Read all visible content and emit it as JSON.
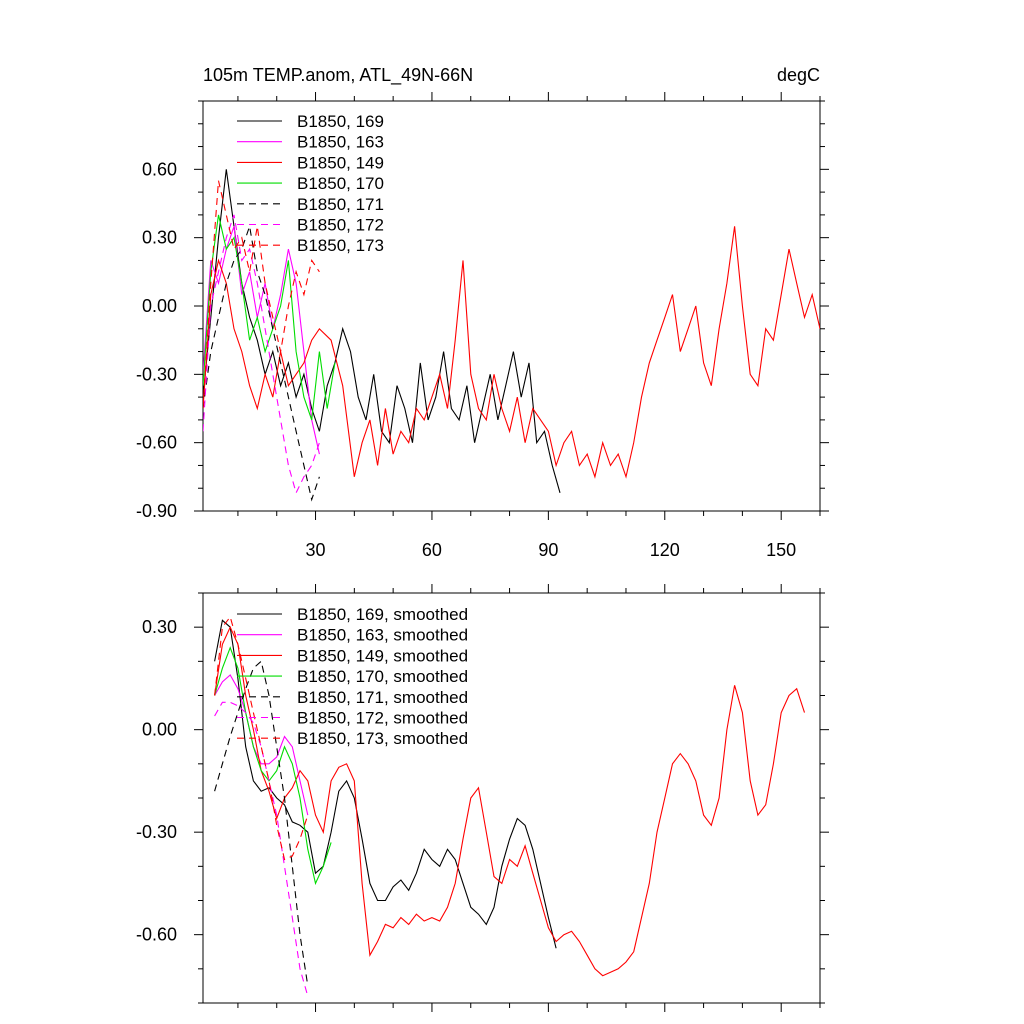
{
  "figure": {
    "title_left": "105m TEMP.anom, ATL_49N-66N",
    "title_right": "degC"
  },
  "chart_data": [
    {
      "type": "line",
      "panel": "top",
      "title": "105m TEMP.anom, ATL_49N-66N",
      "units": "degC",
      "xlim": [
        1,
        160
      ],
      "ylim": [
        -0.9,
        0.9
      ],
      "xticks": [
        30,
        60,
        90,
        120,
        150
      ],
      "xtick_labels": [
        "30",
        "60",
        "90",
        "120",
        "150"
      ],
      "yticks": [
        -0.9,
        -0.6,
        -0.3,
        0.0,
        0.3,
        0.6
      ],
      "ytick_labels": [
        "-0.90",
        "-0.60",
        "-0.30",
        "0.00",
        "0.30",
        "0.60"
      ],
      "legend_position": "top-left",
      "series": [
        {
          "name": "B1850, 169",
          "color": "#000000",
          "dash": "solid",
          "x": [
            1,
            3,
            5,
            7,
            9,
            11,
            13,
            15,
            17,
            19,
            21,
            23,
            25,
            27,
            29,
            31,
            33,
            35,
            37,
            39,
            41,
            43,
            45,
            47,
            49,
            51,
            53,
            55,
            57,
            59,
            61,
            63,
            65,
            67,
            69,
            71,
            73,
            75,
            77,
            79,
            81,
            83,
            85,
            87,
            89,
            91,
            93
          ],
          "values": [
            -0.4,
            -0.05,
            0.3,
            0.6,
            0.35,
            0.1,
            -0.05,
            -0.15,
            -0.3,
            -0.2,
            -0.35,
            -0.25,
            -0.4,
            -0.3,
            -0.45,
            -0.55,
            -0.35,
            -0.25,
            -0.1,
            -0.2,
            -0.4,
            -0.5,
            -0.3,
            -0.55,
            -0.6,
            -0.35,
            -0.45,
            -0.6,
            -0.25,
            -0.5,
            -0.4,
            -0.2,
            -0.45,
            -0.5,
            -0.35,
            -0.6,
            -0.45,
            -0.3,
            -0.5,
            -0.35,
            -0.2,
            -0.4,
            -0.25,
            -0.6,
            -0.55,
            -0.7,
            -0.82
          ]
        },
        {
          "name": "B1850, 163",
          "color": "#ff00ff",
          "dash": "solid",
          "x": [
            1,
            3,
            5,
            7,
            9,
            11,
            13,
            15,
            17,
            19,
            21,
            23,
            25,
            27,
            29,
            31
          ],
          "values": [
            -0.3,
            0.2,
            0.1,
            0.25,
            0.35,
            0.05,
            0.15,
            -0.05,
            0.1,
            -0.1,
            0.05,
            0.25,
            0.1,
            -0.2,
            -0.5,
            -0.65
          ]
        },
        {
          "name": "B1850, 149",
          "color": "#ff0000",
          "dash": "solid",
          "x": [
            1,
            3,
            5,
            7,
            9,
            11,
            13,
            15,
            17,
            19,
            21,
            23,
            25,
            27,
            29,
            31,
            34,
            37,
            40,
            42,
            44,
            46,
            48,
            50,
            52,
            54,
            56,
            58,
            60,
            62,
            64,
            66,
            68,
            70,
            72,
            74,
            76,
            78,
            80,
            82,
            84,
            86,
            88,
            90,
            92,
            94,
            96,
            98,
            100,
            102,
            104,
            106,
            108,
            110,
            112,
            114,
            116,
            118,
            120,
            122,
            124,
            126,
            128,
            130,
            132,
            134,
            136,
            138,
            140,
            142,
            144,
            146,
            148,
            150,
            152,
            154,
            156,
            158,
            160
          ],
          "values": [
            -0.45,
            0.05,
            0.2,
            0.1,
            -0.1,
            -0.2,
            -0.35,
            -0.45,
            -0.3,
            -0.4,
            -0.2,
            -0.35,
            -0.3,
            -0.25,
            -0.15,
            -0.1,
            -0.15,
            -0.35,
            -0.75,
            -0.6,
            -0.5,
            -0.7,
            -0.45,
            -0.65,
            -0.55,
            -0.6,
            -0.45,
            -0.5,
            -0.4,
            -0.3,
            -0.45,
            -0.15,
            0.2,
            -0.3,
            -0.45,
            -0.5,
            -0.3,
            -0.45,
            -0.55,
            -0.4,
            -0.6,
            -0.45,
            -0.5,
            -0.55,
            -0.7,
            -0.6,
            -0.55,
            -0.7,
            -0.65,
            -0.75,
            -0.6,
            -0.7,
            -0.65,
            -0.75,
            -0.6,
            -0.4,
            -0.25,
            -0.15,
            -0.05,
            0.05,
            -0.2,
            -0.1,
            0.0,
            -0.25,
            -0.35,
            -0.1,
            0.1,
            0.35,
            0.0,
            -0.3,
            -0.35,
            -0.1,
            -0.15,
            0.05,
            0.25,
            0.1,
            -0.05,
            0.05,
            -0.1
          ]
        },
        {
          "name": "B1850, 170",
          "color": "#00dd00",
          "dash": "solid",
          "x": [
            1,
            3,
            5,
            7,
            9,
            11,
            13,
            15,
            17,
            19,
            21,
            23,
            25,
            27,
            29,
            31,
            33,
            35
          ],
          "values": [
            -0.35,
            0.15,
            0.4,
            0.25,
            0.3,
            0.1,
            -0.15,
            -0.05,
            -0.2,
            -0.1,
            0.0,
            0.2,
            -0.2,
            -0.4,
            -0.5,
            -0.2,
            -0.45,
            -0.25
          ]
        },
        {
          "name": "B1850, 171",
          "color": "#000000",
          "dash": "dashed",
          "x": [
            1,
            3,
            5,
            7,
            9,
            11,
            13,
            15,
            17,
            19,
            21,
            23,
            25,
            27,
            29,
            31
          ],
          "values": [
            -0.45,
            -0.2,
            -0.05,
            0.1,
            0.2,
            0.25,
            0.35,
            0.15,
            0.05,
            -0.1,
            -0.25,
            -0.4,
            -0.55,
            -0.7,
            -0.85,
            -0.75
          ]
        },
        {
          "name": "B1850, 172",
          "color": "#ff00ff",
          "dash": "dashed",
          "x": [
            1,
            3,
            5,
            7,
            9,
            11,
            13,
            15,
            17,
            19,
            21,
            23,
            25,
            27,
            29,
            31
          ],
          "values": [
            -0.55,
            0.0,
            0.15,
            0.3,
            0.4,
            0.2,
            0.25,
            0.1,
            -0.1,
            -0.3,
            -0.5,
            -0.7,
            -0.82,
            -0.75,
            -0.7,
            -0.6
          ]
        },
        {
          "name": "B1850, 173",
          "color": "#ff0000",
          "dash": "dashed",
          "x": [
            1,
            3,
            5,
            7,
            9,
            11,
            13,
            15,
            17,
            19,
            21,
            23,
            25,
            27,
            29,
            31
          ],
          "values": [
            -0.45,
            0.1,
            0.55,
            0.4,
            0.25,
            0.3,
            0.15,
            0.35,
            0.1,
            -0.05,
            -0.2,
            0.0,
            0.15,
            0.05,
            0.2,
            0.15
          ]
        }
      ]
    },
    {
      "type": "line",
      "panel": "bottom",
      "xlim": [
        1,
        160
      ],
      "ylim": [
        -0.8,
        0.4
      ],
      "xticks": [
        30,
        60,
        90,
        120,
        150
      ],
      "yticks": [
        -0.6,
        -0.3,
        0.0,
        0.3
      ],
      "ytick_labels": [
        "-0.60",
        "-0.30",
        "0.00",
        "0.30"
      ],
      "legend_position": "top-left",
      "series": [
        {
          "name": "B1850, 169, smoothed",
          "color": "#000000",
          "dash": "solid",
          "x": [
            4,
            6,
            8,
            10,
            12,
            14,
            16,
            18,
            20,
            22,
            24,
            26,
            28,
            30,
            32,
            34,
            36,
            38,
            40,
            42,
            44,
            46,
            48,
            50,
            52,
            54,
            56,
            58,
            60,
            62,
            64,
            66,
            68,
            70,
            72,
            74,
            76,
            78,
            80,
            82,
            84,
            86,
            88,
            90,
            92
          ],
          "values": [
            0.2,
            0.32,
            0.3,
            0.15,
            -0.05,
            -0.15,
            -0.18,
            -0.17,
            -0.2,
            -0.22,
            -0.27,
            -0.28,
            -0.3,
            -0.42,
            -0.4,
            -0.3,
            -0.18,
            -0.15,
            -0.2,
            -0.32,
            -0.45,
            -0.5,
            -0.5,
            -0.46,
            -0.44,
            -0.47,
            -0.42,
            -0.35,
            -0.38,
            -0.4,
            -0.35,
            -0.38,
            -0.45,
            -0.52,
            -0.54,
            -0.57,
            -0.52,
            -0.4,
            -0.32,
            -0.26,
            -0.28,
            -0.35,
            -0.45,
            -0.55,
            -0.64
          ]
        },
        {
          "name": "B1850, 163, smoothed",
          "color": "#ff00ff",
          "dash": "solid",
          "x": [
            4,
            6,
            8,
            10,
            12,
            14,
            16,
            18,
            20,
            22,
            24,
            26,
            28
          ],
          "values": [
            0.1,
            0.14,
            0.16,
            0.12,
            0.05,
            -0.05,
            -0.1,
            -0.1,
            -0.08,
            -0.02,
            -0.05,
            -0.15,
            -0.25
          ]
        },
        {
          "name": "B1850, 149, smoothed",
          "color": "#ff0000",
          "dash": "solid",
          "x": [
            4,
            6,
            8,
            10,
            12,
            14,
            16,
            18,
            20,
            22,
            24,
            26,
            28,
            30,
            32,
            34,
            36,
            38,
            40,
            42,
            44,
            46,
            48,
            50,
            52,
            54,
            56,
            58,
            60,
            62,
            64,
            66,
            68,
            70,
            72,
            74,
            76,
            78,
            80,
            82,
            84,
            86,
            88,
            90,
            92,
            94,
            96,
            98,
            100,
            102,
            104,
            106,
            108,
            110,
            112,
            114,
            116,
            118,
            120,
            122,
            124,
            126,
            128,
            130,
            132,
            134,
            136,
            138,
            140,
            142,
            144,
            146,
            148,
            150,
            152,
            154,
            156
          ],
          "values": [
            0.1,
            0.25,
            0.3,
            0.25,
            0.1,
            0.0,
            -0.12,
            -0.18,
            -0.26,
            -0.2,
            -0.17,
            -0.12,
            -0.15,
            -0.25,
            -0.3,
            -0.15,
            -0.11,
            -0.1,
            -0.15,
            -0.45,
            -0.66,
            -0.62,
            -0.57,
            -0.58,
            -0.55,
            -0.57,
            -0.54,
            -0.56,
            -0.55,
            -0.56,
            -0.52,
            -0.45,
            -0.32,
            -0.2,
            -0.17,
            -0.3,
            -0.43,
            -0.45,
            -0.38,
            -0.4,
            -0.34,
            -0.42,
            -0.5,
            -0.58,
            -0.62,
            -0.6,
            -0.59,
            -0.62,
            -0.66,
            -0.7,
            -0.72,
            -0.71,
            -0.7,
            -0.68,
            -0.65,
            -0.55,
            -0.45,
            -0.3,
            -0.2,
            -0.1,
            -0.07,
            -0.1,
            -0.15,
            -0.25,
            -0.28,
            -0.2,
            0.0,
            0.13,
            0.05,
            -0.15,
            -0.25,
            -0.22,
            -0.1,
            0.05,
            0.1,
            0.12,
            0.05
          ]
        },
        {
          "name": "B1850, 170, smoothed",
          "color": "#00dd00",
          "dash": "solid",
          "x": [
            4,
            6,
            8,
            10,
            12,
            14,
            16,
            18,
            20,
            22,
            24,
            26,
            28,
            30,
            32,
            34
          ],
          "values": [
            0.1,
            0.18,
            0.24,
            0.18,
            0.05,
            -0.05,
            -0.12,
            -0.15,
            -0.12,
            -0.05,
            -0.1,
            -0.2,
            -0.35,
            -0.45,
            -0.4,
            -0.33
          ]
        },
        {
          "name": "B1850, 171, smoothed",
          "color": "#000000",
          "dash": "dashed",
          "x": [
            4,
            6,
            8,
            10,
            12,
            14,
            16,
            18,
            20,
            22,
            24,
            26,
            28
          ],
          "values": [
            -0.18,
            -0.1,
            -0.02,
            0.05,
            0.12,
            0.18,
            0.2,
            0.1,
            -0.05,
            -0.2,
            -0.4,
            -0.6,
            -0.75
          ]
        },
        {
          "name": "B1850, 172, smoothed",
          "color": "#ff00ff",
          "dash": "dashed",
          "x": [
            4,
            6,
            8,
            10,
            12,
            14,
            16,
            18,
            20,
            22,
            24,
            26,
            28
          ],
          "values": [
            0.04,
            0.08,
            0.08,
            0.07,
            0.05,
            0.02,
            -0.05,
            -0.15,
            -0.25,
            -0.4,
            -0.55,
            -0.7,
            -0.78
          ]
        },
        {
          "name": "B1850, 173, smoothed",
          "color": "#ff0000",
          "dash": "dashed",
          "x": [
            4,
            6,
            8,
            10,
            12,
            14,
            16,
            18,
            20,
            22,
            24,
            26,
            28
          ],
          "values": [
            0.1,
            0.3,
            0.33,
            0.25,
            0.15,
            0.05,
            -0.05,
            -0.15,
            -0.28,
            -0.38,
            -0.37,
            -0.32,
            -0.25
          ]
        }
      ]
    }
  ]
}
